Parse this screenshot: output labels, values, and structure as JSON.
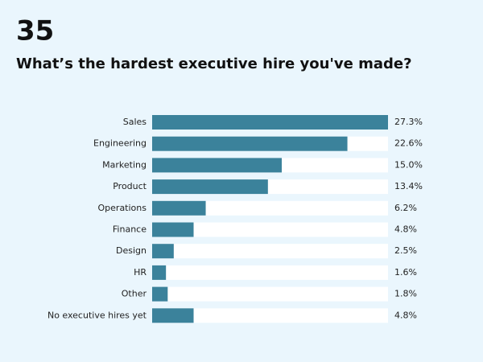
{
  "header": {
    "number": "35"
  },
  "chart_data": {
    "type": "barh",
    "title": "What’s the hardest executive hire you've made?",
    "categories": [
      "Sales",
      "Engineering",
      "Marketing",
      "Product",
      "Operations",
      "Finance",
      "Design",
      "HR",
      "Other",
      "No executive hires yet"
    ],
    "values": [
      27.3,
      22.6,
      15.0,
      13.4,
      6.2,
      4.8,
      2.5,
      1.6,
      1.8,
      4.8
    ],
    "value_labels": [
      "27.3%",
      "22.6%",
      "15.0%",
      "13.4%",
      "6.2%",
      "4.8%",
      "2.5%",
      "1.6%",
      "1.8%",
      "4.8%"
    ],
    "color": "#3b829b",
    "track_color": "#ffffff",
    "xlim": [
      0,
      27.3
    ]
  }
}
